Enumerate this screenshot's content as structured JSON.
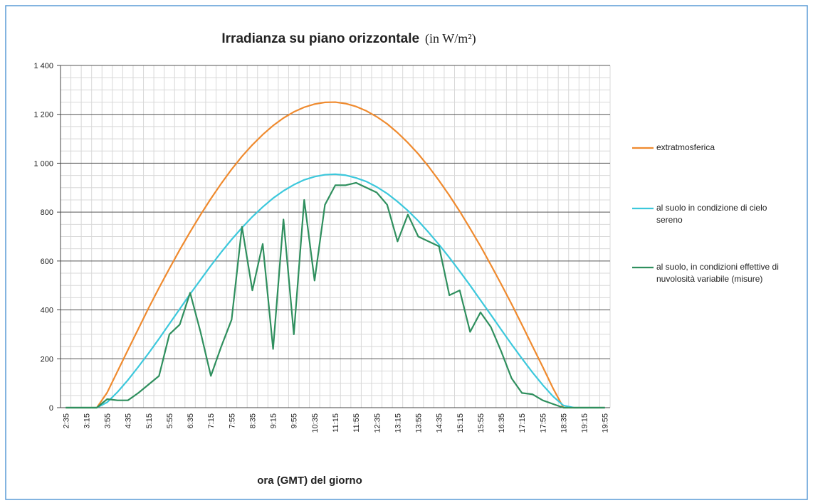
{
  "chart_data": {
    "type": "line",
    "title": "Irradianza su piano orizzontale",
    "subtitle": "(in W/m²)",
    "x_label": "ora (GMT) del giorno",
    "categories": [
      "2:35",
      null,
      "3:15",
      null,
      "3:55",
      null,
      "4:35",
      null,
      "5:15",
      null,
      "5:55",
      null,
      "6:35",
      null,
      "7:15",
      null,
      "7:55",
      null,
      "8:35",
      null,
      "9:15",
      null,
      "9:55",
      null,
      "10:35",
      null,
      "11:15",
      null,
      "11:55",
      null,
      "12:35",
      null,
      "13:15",
      null,
      "13:55",
      null,
      "14:35",
      null,
      "15:15",
      null,
      "15:55",
      null,
      "16:35",
      null,
      "17:15",
      null,
      "17:55",
      null,
      "18:35",
      null,
      "19:15",
      null,
      "19:55"
    ],
    "series": [
      {
        "name": "extratmosferica",
        "color": "#ef8a2e",
        "values": [
          0,
          0,
          0,
          0,
          62,
          149,
          236,
          322,
          408,
          490,
          569,
          646,
          719,
          789,
          855,
          917,
          975,
          1028,
          1075,
          1117,
          1154,
          1185,
          1210,
          1229,
          1242,
          1249,
          1250,
          1244,
          1232,
          1214,
          1190,
          1161,
          1125,
          1084,
          1038,
          986,
          929,
          868,
          803,
          733,
          661,
          584,
          505,
          424,
          339,
          253,
          167,
          79,
          0,
          0,
          0,
          0,
          0
        ]
      },
      {
        "name": "al suolo in condizione di cielo sereno",
        "color": "#3cc8dc",
        "values": [
          0,
          0,
          0,
          0,
          22,
          64,
          113,
          167,
          223,
          282,
          343,
          404,
          465,
          523,
          581,
          636,
          688,
          736,
          781,
          821,
          857,
          887,
          912,
          932,
          945,
          953,
          955,
          951,
          940,
          925,
          903,
          876,
          843,
          806,
          764,
          717,
          667,
          614,
          558,
          500,
          440,
          380,
          319,
          259,
          201,
          145,
          93,
          46,
          9,
          0,
          0,
          0,
          0
        ]
      },
      {
        "name": "al suolo, in condizioni effettive di nuvolosità variabile (misure)",
        "color": "#2f8f5e",
        "values": [
          0,
          0,
          0,
          0,
          35,
          30,
          30,
          60,
          95,
          130,
          300,
          340,
          470,
          310,
          130,
          250,
          360,
          740,
          480,
          670,
          240,
          770,
          300,
          850,
          520,
          830,
          910,
          910,
          920,
          900,
          880,
          830,
          680,
          790,
          700,
          680,
          660,
          460,
          480,
          310,
          390,
          330,
          230,
          120,
          60,
          55,
          30,
          15,
          0,
          0,
          0,
          0,
          0
        ]
      }
    ],
    "ylim": [
      0,
      1400
    ],
    "yticks": [
      0,
      200,
      400,
      600,
      800,
      {
        "value": 1000,
        "label": "1 000"
      },
      {
        "value": 1200,
        "label": "1 200"
      },
      {
        "value": 1400,
        "label": "1 400"
      }
    ],
    "grid": true,
    "legend": "right"
  }
}
